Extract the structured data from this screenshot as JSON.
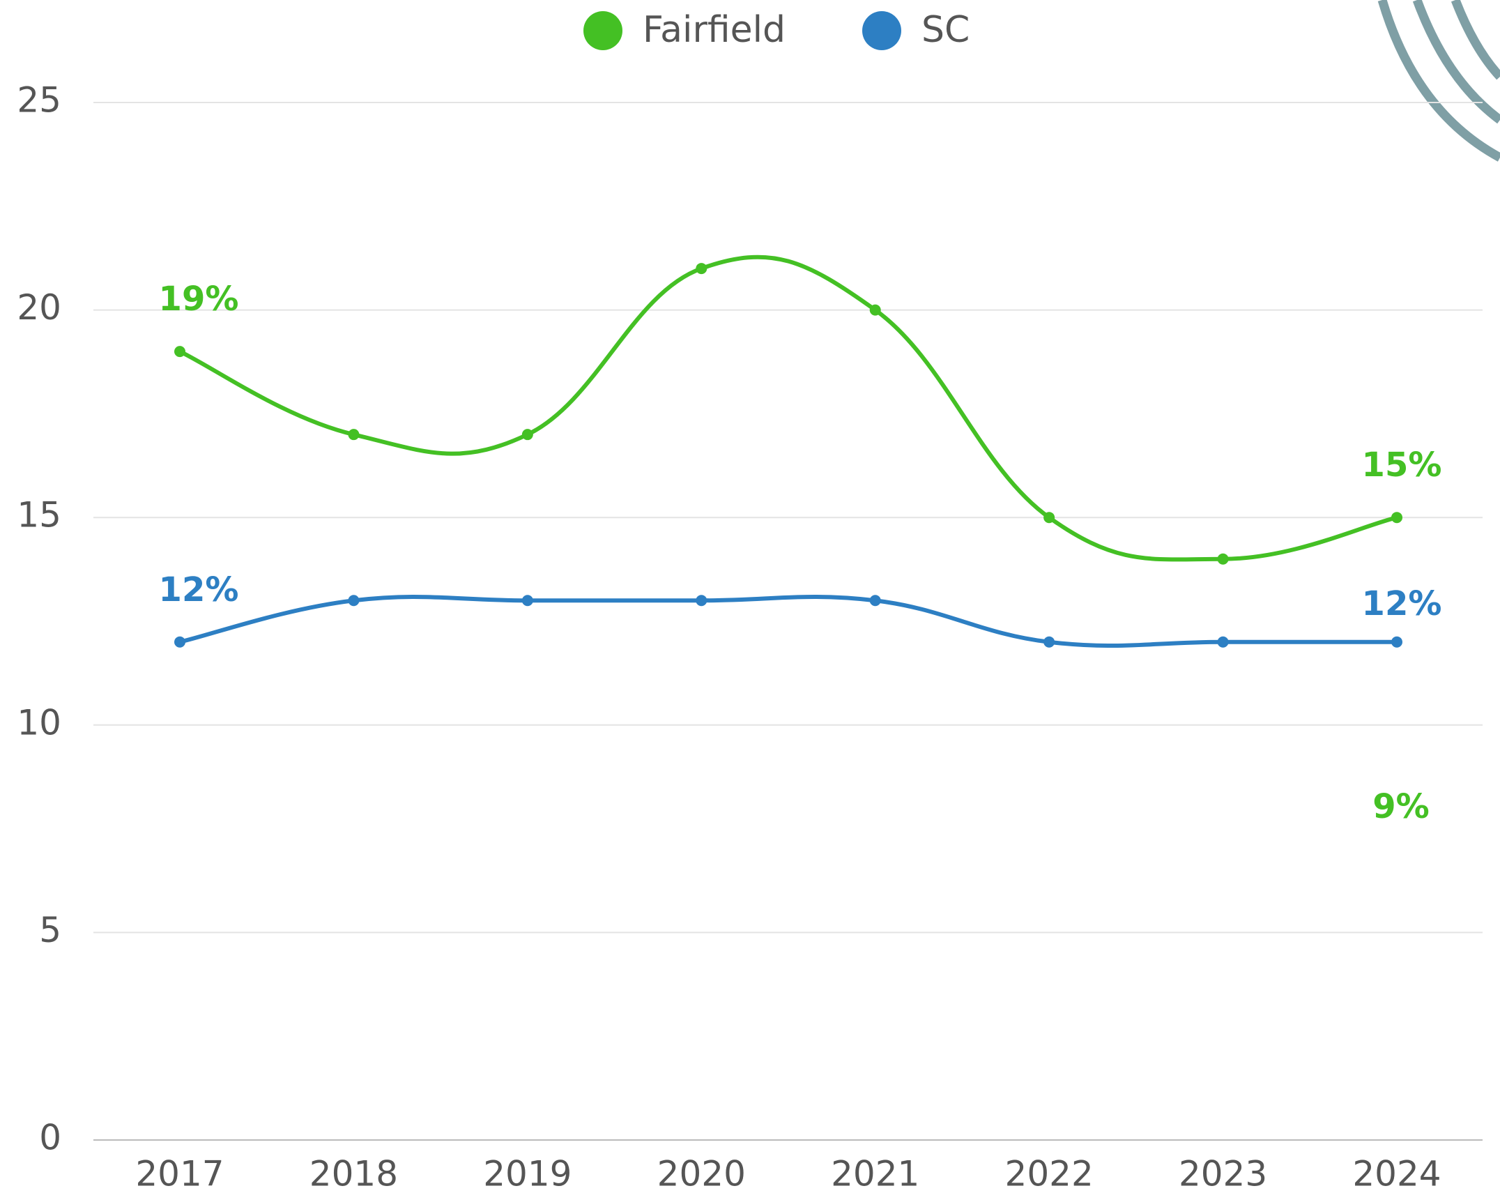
{
  "chart_data": {
    "type": "line",
    "categories": [
      "2017",
      "2018",
      "2019",
      "2020",
      "2021",
      "2022",
      "2023",
      "2024"
    ],
    "series": [
      {
        "name": "Fairfield",
        "color": "#44c024",
        "values": [
          19,
          17,
          17,
          21,
          20,
          15,
          14,
          15
        ],
        "value_labels": [
          "19%",
          null,
          null,
          null,
          null,
          null,
          null,
          "15%"
        ]
      },
      {
        "name": "SC",
        "color": "#2d7fc3",
        "values": [
          12,
          13,
          13,
          13,
          13,
          12,
          12,
          12
        ],
        "value_labels": [
          "12%",
          null,
          null,
          null,
          null,
          null,
          null,
          "12%"
        ]
      }
    ],
    "annotations": [
      {
        "text": "9%",
        "color": "#44c024"
      }
    ],
    "ylim": [
      0,
      25
    ],
    "yticks": [
      0,
      5,
      10,
      15,
      20,
      25
    ],
    "grid": true
  }
}
